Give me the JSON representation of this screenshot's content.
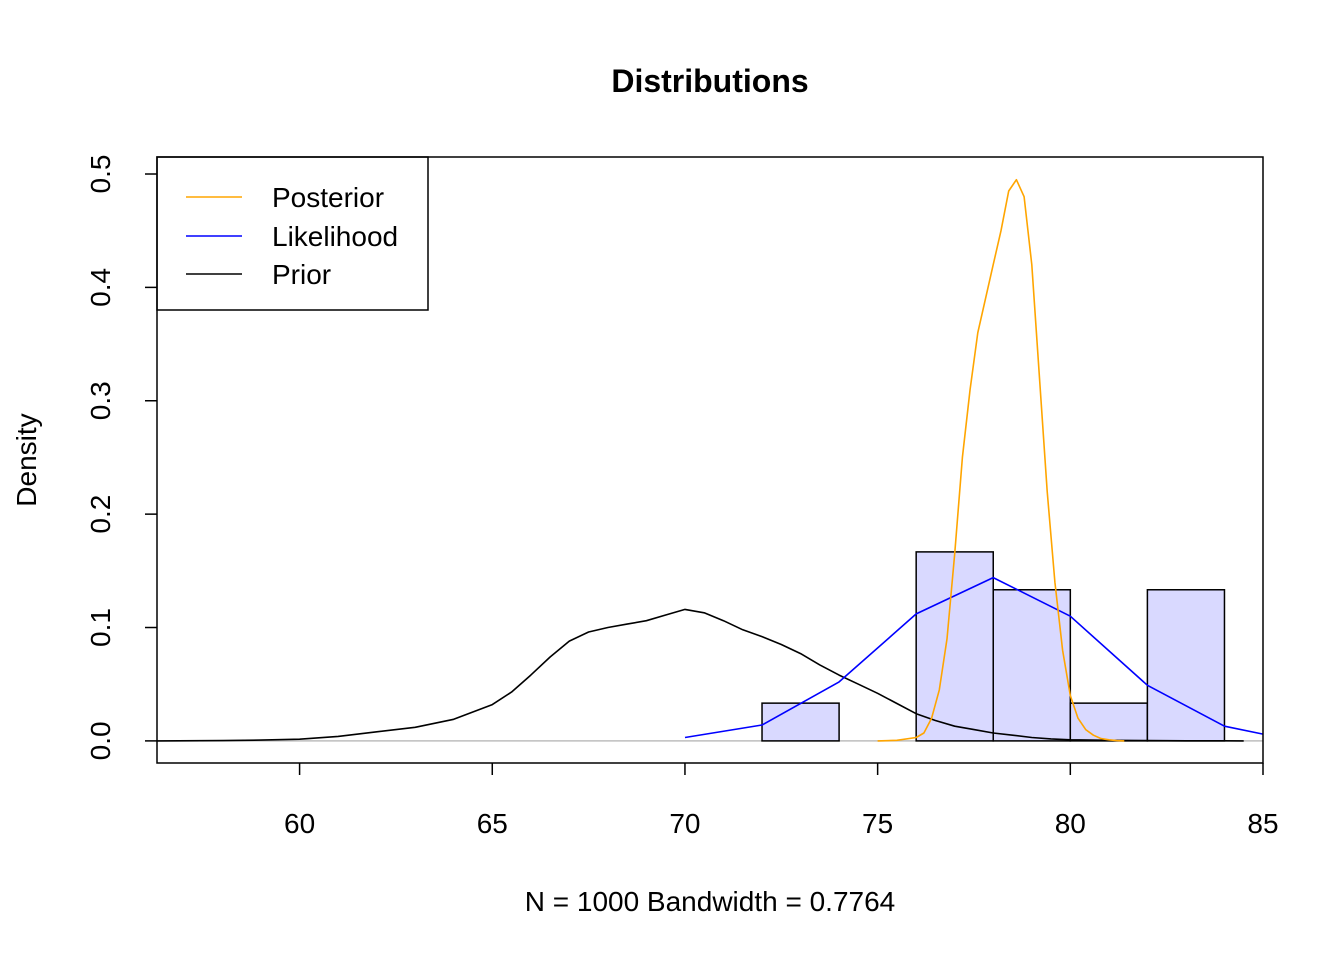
{
  "chart_data": {
    "type": "line",
    "title": "Distributions",
    "xlabel": "N = 1000   Bandwidth = 0.7764",
    "ylabel": "Density",
    "xlim": [
      56.3,
      85
    ],
    "ylim": [
      -0.0195,
      0.515
    ],
    "x_ticks": [
      "60",
      "65",
      "70",
      "75",
      "80",
      "85"
    ],
    "y_ticks": [
      "0.0",
      "0.1",
      "0.2",
      "0.3",
      "0.4",
      "0.5"
    ],
    "legend": {
      "position": "top-left",
      "entries": [
        {
          "label": "Posterior",
          "color": "#FFA500"
        },
        {
          "label": "Likelihood",
          "color": "#0000FF"
        },
        {
          "label": "Prior",
          "color": "#000000"
        }
      ]
    },
    "histogram": {
      "fill": "#D9D9FF",
      "stroke": "#000000",
      "bins": [
        {
          "x0": 72,
          "x1": 74,
          "density": 0.0333
        },
        {
          "x0": 74,
          "x1": 76,
          "density": 0
        },
        {
          "x0": 76,
          "x1": 78,
          "density": 0.1667
        },
        {
          "x0": 78,
          "x1": 80,
          "density": 0.1333
        },
        {
          "x0": 80,
          "x1": 82,
          "density": 0.0333
        },
        {
          "x0": 82,
          "x1": 84,
          "density": 0.1333
        }
      ]
    },
    "series": [
      {
        "name": "Prior",
        "color": "#000000",
        "x": [
          56.3,
          58,
          59,
          60,
          61,
          62,
          63,
          64,
          65,
          65.5,
          66,
          66.5,
          67,
          67.5,
          68,
          68.5,
          69,
          69.5,
          70,
          70.5,
          71,
          71.5,
          72,
          72.5,
          73,
          73.5,
          74,
          74.5,
          75,
          75.5,
          76,
          76.5,
          77,
          77.5,
          78,
          78.5,
          79,
          79.5,
          80,
          81,
          82,
          83,
          84,
          84.5
        ],
        "y": [
          0,
          0.0003,
          0.0007,
          0.0015,
          0.004,
          0.008,
          0.012,
          0.019,
          0.032,
          0.043,
          0.058,
          0.074,
          0.088,
          0.096,
          0.1,
          0.103,
          0.106,
          0.111,
          0.116,
          0.113,
          0.106,
          0.098,
          0.092,
          0.085,
          0.077,
          0.067,
          0.058,
          0.05,
          0.042,
          0.033,
          0.024,
          0.018,
          0.013,
          0.01,
          0.007,
          0.005,
          0.003,
          0.0018,
          0.001,
          0.0005,
          0.0003,
          0.0001,
          5e-05,
          0
        ]
      },
      {
        "name": "Likelihood",
        "color": "#0000FF",
        "x": [
          70,
          72,
          74,
          76,
          78,
          80,
          82,
          84,
          85
        ],
        "y": [
          0.003,
          0.014,
          0.052,
          0.112,
          0.144,
          0.11,
          0.049,
          0.013,
          0.006
        ]
      },
      {
        "name": "Posterior",
        "color": "#FFA500",
        "x": [
          75,
          75.5,
          76,
          76.2,
          76.4,
          76.6,
          76.8,
          77,
          77.2,
          77.4,
          77.6,
          77.8,
          78,
          78.2,
          78.4,
          78.6,
          78.8,
          79,
          79.2,
          79.4,
          79.6,
          79.8,
          80,
          80.2,
          80.4,
          80.6,
          80.8,
          81,
          81.2,
          81.4
        ],
        "y": [
          0,
          0.0005,
          0.003,
          0.007,
          0.02,
          0.045,
          0.09,
          0.165,
          0.25,
          0.31,
          0.36,
          0.39,
          0.42,
          0.45,
          0.485,
          0.495,
          0.48,
          0.42,
          0.32,
          0.22,
          0.14,
          0.08,
          0.04,
          0.02,
          0.01,
          0.005,
          0.002,
          0.001,
          0.0003,
          0
        ]
      }
    ]
  }
}
